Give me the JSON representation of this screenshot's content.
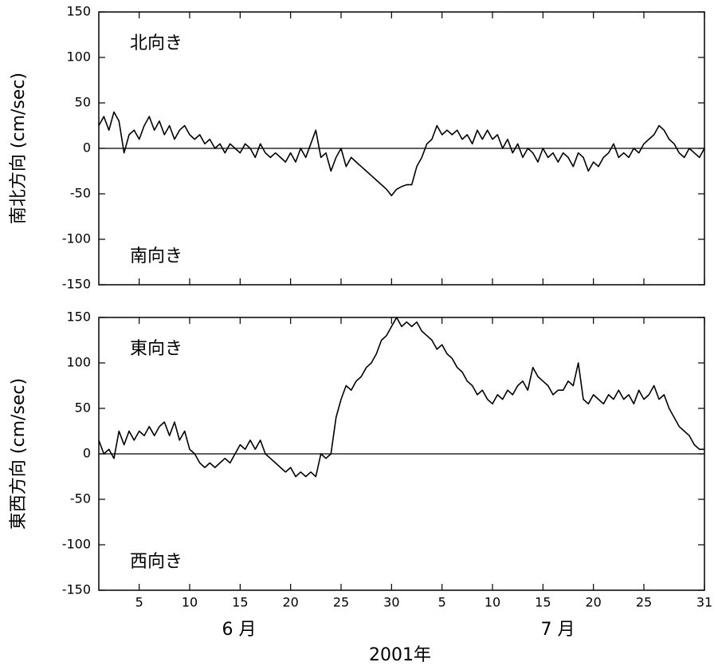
{
  "chart_data": [
    {
      "type": "line",
      "ylabel": "南北方向 (cm/sec)",
      "annotations": [
        "北向き",
        "南向き"
      ],
      "color": "#000000",
      "x": [
        1,
        1.5,
        2,
        2.5,
        3,
        3.5,
        4,
        4.5,
        5,
        5.5,
        6,
        6.5,
        7,
        7.5,
        8,
        8.5,
        9,
        9.5,
        10,
        10.5,
        11,
        11.5,
        12,
        12.5,
        13,
        13.5,
        14,
        14.5,
        15,
        15.5,
        16,
        16.5,
        17,
        17.5,
        18,
        18.5,
        19,
        19.5,
        20,
        20.5,
        21,
        21.5,
        22,
        22.5,
        23,
        23.5,
        24,
        24.5,
        25,
        25.5,
        26,
        26.5,
        27,
        27.5,
        28,
        28.5,
        29,
        29.5,
        30,
        30.5,
        31,
        31.5,
        32,
        32.5,
        33,
        33.5,
        34,
        34.5,
        35,
        35.5,
        36,
        36.5,
        37,
        37.5,
        38,
        38.5,
        39,
        39.5,
        40,
        40.5,
        41,
        41.5,
        42,
        42.5,
        43,
        43.5,
        44,
        44.5,
        45,
        45.5,
        46,
        46.5,
        47,
        47.5,
        48,
        48.5,
        49,
        49.5,
        50,
        50.5,
        51,
        51.5,
        52,
        52.5,
        53,
        53.5,
        54,
        54.5,
        55,
        55.5,
        56,
        56.5,
        57,
        57.5,
        58,
        58.5,
        59,
        59.5,
        60,
        60.5,
        61
      ],
      "values": [
        25,
        35,
        20,
        40,
        30,
        -5,
        15,
        20,
        10,
        25,
        35,
        20,
        30,
        15,
        25,
        10,
        20,
        25,
        15,
        10,
        15,
        5,
        10,
        0,
        5,
        -5,
        5,
        0,
        -5,
        5,
        0,
        -10,
        5,
        -5,
        -10,
        -5,
        -10,
        -15,
        -5,
        -15,
        0,
        -10,
        5,
        20,
        -10,
        -5,
        -25,
        -10,
        0,
        -20,
        -10,
        -15,
        -20,
        -25,
        -30,
        -35,
        -40,
        -45,
        -52,
        -45,
        -42,
        -40,
        -40,
        -20,
        -10,
        5,
        10,
        25,
        15,
        20,
        15,
        20,
        10,
        15,
        5,
        20,
        10,
        20,
        10,
        15,
        0,
        10,
        -5,
        5,
        -10,
        0,
        -5,
        -15,
        0,
        -10,
        -5,
        -15,
        -5,
        -10,
        -20,
        -5,
        -10,
        -25,
        -15,
        -20,
        -10,
        -5,
        5,
        -10,
        -5,
        -10,
        0,
        -5,
        5,
        10,
        15,
        25,
        20,
        10,
        5,
        -5,
        -10,
        0,
        -5,
        -10,
        0
      ],
      "xlim": [
        1,
        61
      ],
      "xticks": [
        5,
        10,
        15,
        20,
        25,
        30,
        35,
        40,
        45,
        50,
        55,
        61
      ],
      "ylim": [
        -150,
        150
      ],
      "yticks": [
        150,
        100,
        50,
        0,
        -50,
        -100,
        -150
      ]
    },
    {
      "type": "line",
      "ylabel": "東西方向 (cm/sec)",
      "annotations": [
        "東向き",
        "西向き"
      ],
      "color": "#000000",
      "xlabel": "2001年",
      "x_groups": [
        "6 月",
        "7 月"
      ],
      "x": [
        1,
        1.5,
        2,
        2.5,
        3,
        3.5,
        4,
        4.5,
        5,
        5.5,
        6,
        6.5,
        7,
        7.5,
        8,
        8.5,
        9,
        9.5,
        10,
        10.5,
        11,
        11.5,
        12,
        12.5,
        13,
        13.5,
        14,
        14.5,
        15,
        15.5,
        16,
        16.5,
        17,
        17.5,
        18,
        18.5,
        19,
        19.5,
        20,
        20.5,
        21,
        21.5,
        22,
        22.5,
        23,
        23.5,
        24,
        24.5,
        25,
        25.5,
        26,
        26.5,
        27,
        27.5,
        28,
        28.5,
        29,
        29.5,
        30,
        30.5,
        31,
        31.5,
        32,
        32.5,
        33,
        33.5,
        34,
        34.5,
        35,
        35.5,
        36,
        36.5,
        37,
        37.5,
        38,
        38.5,
        39,
        39.5,
        40,
        40.5,
        41,
        41.5,
        42,
        42.5,
        43,
        43.5,
        44,
        44.5,
        45,
        45.5,
        46,
        46.5,
        47,
        47.5,
        48,
        48.5,
        49,
        49.5,
        50,
        50.5,
        51,
        51.5,
        52,
        52.5,
        53,
        53.5,
        54,
        54.5,
        55,
        55.5,
        56,
        56.5,
        57,
        57.5,
        58,
        58.5,
        59,
        59.5,
        60,
        60.5,
        61
      ],
      "values": [
        15,
        0,
        5,
        -5,
        25,
        10,
        25,
        15,
        25,
        20,
        30,
        20,
        30,
        35,
        20,
        35,
        15,
        25,
        5,
        0,
        -10,
        -15,
        -10,
        -15,
        -10,
        -5,
        -10,
        0,
        10,
        5,
        15,
        5,
        15,
        0,
        -5,
        -10,
        -15,
        -20,
        -15,
        -25,
        -20,
        -25,
        -20,
        -25,
        0,
        -5,
        0,
        40,
        60,
        75,
        70,
        80,
        85,
        95,
        100,
        110,
        125,
        130,
        140,
        150,
        140,
        145,
        140,
        145,
        135,
        130,
        125,
        115,
        120,
        110,
        105,
        95,
        90,
        80,
        75,
        65,
        70,
        60,
        55,
        65,
        60,
        70,
        65,
        75,
        80,
        70,
        95,
        85,
        80,
        75,
        65,
        70,
        70,
        80,
        75,
        100,
        60,
        55,
        65,
        60,
        55,
        65,
        60,
        70,
        60,
        65,
        55,
        70,
        60,
        65,
        75,
        60,
        65,
        50,
        40,
        30,
        25,
        20,
        10,
        5,
        5
      ],
      "xlim": [
        1,
        61
      ],
      "xticks": [
        5,
        10,
        15,
        20,
        25,
        30,
        {
          "value": 35,
          "label": "5"
        },
        {
          "value": 40,
          "label": "10"
        },
        {
          "value": 45,
          "label": "15"
        },
        {
          "value": 50,
          "label": "20"
        },
        {
          "value": 55,
          "label": "25"
        },
        {
          "value": 61,
          "label": "31"
        }
      ],
      "ylim": [
        -150,
        150
      ],
      "yticks": [
        150,
        100,
        50,
        0,
        -50,
        -100,
        -150
      ]
    }
  ]
}
